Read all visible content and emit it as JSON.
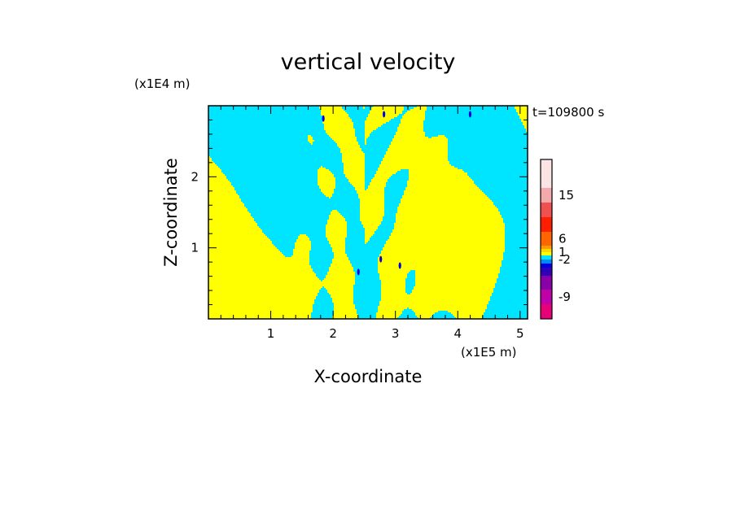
{
  "chart_data": {
    "type": "heatmap",
    "title": "vertical velocity",
    "xlabel": "X-coordinate",
    "ylabel": "Z-coordinate",
    "x_scale_label": "(x1E5 m)",
    "y_scale_label": "(x1E4 m)",
    "time_label": "t=109800 s",
    "xlim": [
      0,
      5.12
    ],
    "ylim": [
      0,
      3.0
    ],
    "x_ticks": [
      1,
      2,
      3,
      4,
      5
    ],
    "x_tick_labels": [
      "1",
      "2",
      "3",
      "4",
      "5"
    ],
    "y_ticks": [
      1,
      2
    ],
    "y_tick_labels": [
      "1",
      "2"
    ],
    "dominant_colors": {
      "positive_small": "#ffff00",
      "negative_small": "#00e5ff"
    },
    "colorbar": {
      "levels": [
        {
          "color": "#e8007a"
        },
        {
          "color": "#c000a8"
        },
        {
          "color": "#8a00a8"
        },
        {
          "color": "#3000b8"
        },
        {
          "color": "#0000e0"
        },
        {
          "color": "#0088ff"
        },
        {
          "color": "#00e5ff"
        },
        {
          "color": "#ffff00"
        },
        {
          "color": "#ffd800"
        },
        {
          "color": "#ff9c00"
        },
        {
          "color": "#ff6600"
        },
        {
          "color": "#ff1e00"
        },
        {
          "color": "#f05050"
        },
        {
          "color": "#f4aaaa"
        },
        {
          "color": "#fce4e4"
        }
      ],
      "labels": [
        {
          "text": "-9",
          "level_index": 1
        },
        {
          "text": "-2",
          "level_index": 5.5
        },
        {
          "text": "1",
          "level_index": 7.5
        },
        {
          "text": "6",
          "level_index": 10
        },
        {
          "text": "15",
          "level_index": 13
        }
      ]
    }
  }
}
